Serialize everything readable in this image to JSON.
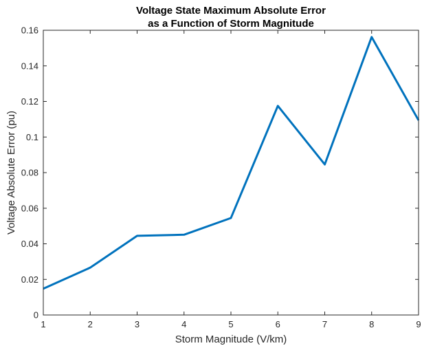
{
  "chart_data": {
    "type": "line",
    "title_lines": [
      "Voltage State Maximum Absolute Error",
      "as a Function of Storm Magnitude"
    ],
    "xlabel": "Storm Magnitude (V/km)",
    "ylabel": "Voltage Absolute Error (pu)",
    "xlim": [
      1,
      9
    ],
    "ylim": [
      0,
      0.16
    ],
    "xticks": [
      1,
      2,
      3,
      4,
      5,
      6,
      7,
      8,
      9
    ],
    "yticks": [
      0,
      0.02,
      0.04,
      0.06,
      0.08,
      0.1,
      0.12,
      0.14,
      0.16
    ],
    "ytick_labels": [
      "0",
      "0.02",
      "0.04",
      "0.06",
      "0.08",
      "0.1",
      "0.12",
      "0.14",
      "0.16"
    ],
    "grid": false,
    "box": true,
    "series": [
      {
        "x": [
          1,
          2,
          3,
          4,
          5,
          6,
          7,
          8,
          9
        ],
        "values": [
          0.0148,
          0.0266,
          0.0445,
          0.0451,
          0.0545,
          0.1175,
          0.0846,
          0.1562,
          0.1094
        ],
        "color": "#0072BD"
      }
    ]
  }
}
